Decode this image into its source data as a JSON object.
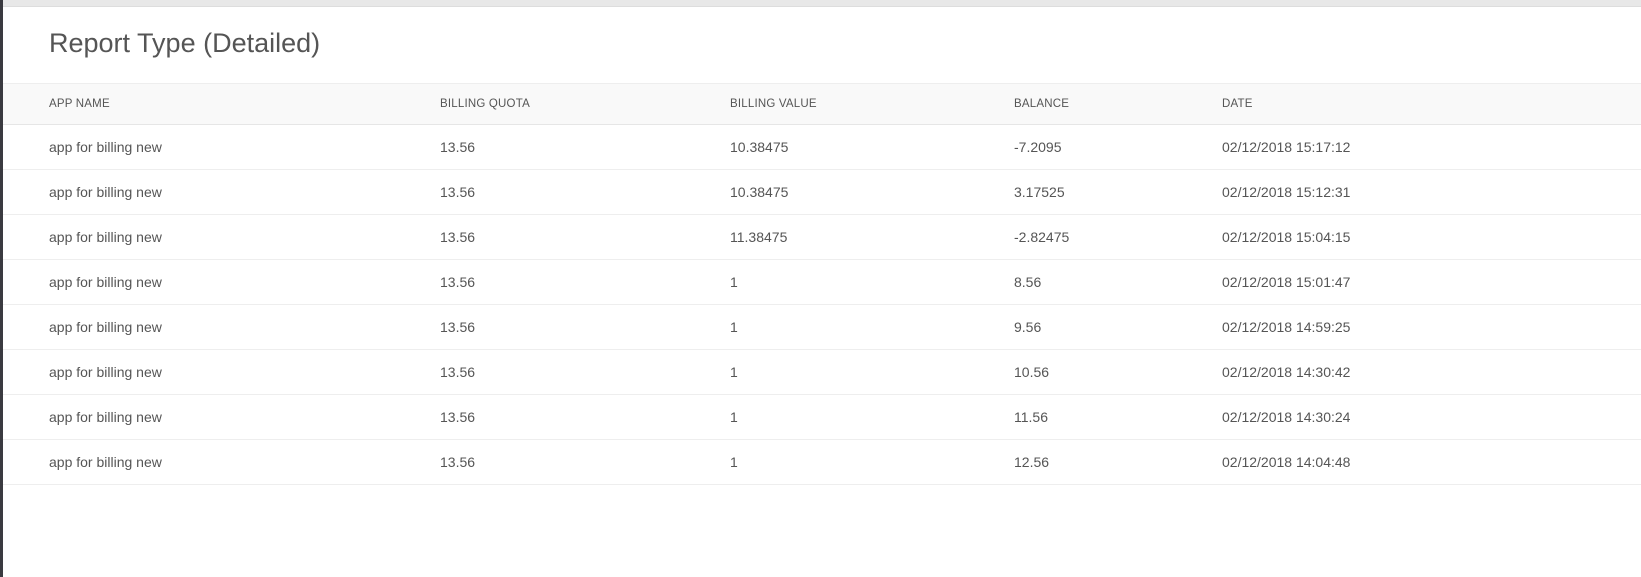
{
  "title": "Report Type (Detailed)",
  "columns": [
    "APP NAME",
    "BILLING QUOTA",
    "BILLING VALUE",
    "BALANCE",
    "DATE"
  ],
  "rows": [
    [
      "app for billing new",
      "13.56",
      "10.38475",
      "-7.2095",
      "02/12/2018 15:17:12"
    ],
    [
      "app for billing new",
      "13.56",
      "10.38475",
      "3.17525",
      "02/12/2018 15:12:31"
    ],
    [
      "app for billing new",
      "13.56",
      "11.38475",
      "-2.82475",
      "02/12/2018 15:04:15"
    ],
    [
      "app for billing new",
      "13.56",
      "1",
      "8.56",
      "02/12/2018 15:01:47"
    ],
    [
      "app for billing new",
      "13.56",
      "1",
      "9.56",
      "02/12/2018 14:59:25"
    ],
    [
      "app for billing new",
      "13.56",
      "1",
      "10.56",
      "02/12/2018 14:30:42"
    ],
    [
      "app for billing new",
      "13.56",
      "1",
      "11.56",
      "02/12/2018 14:30:24"
    ],
    [
      "app for billing new",
      "13.56",
      "1",
      "12.56",
      "02/12/2018 14:04:48"
    ]
  ]
}
